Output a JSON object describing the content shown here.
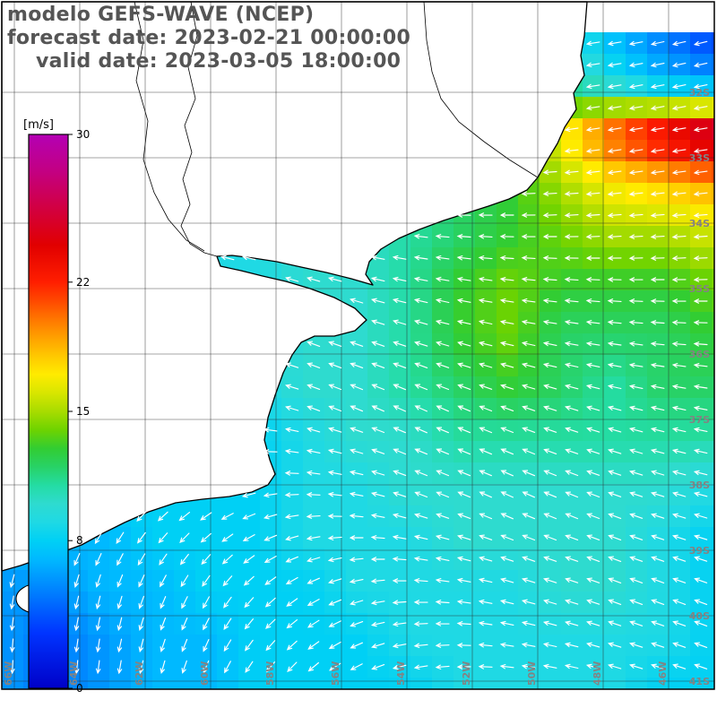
{
  "header": {
    "title": "modelo GEFS-WAVE (NCEP)",
    "forecast_line": "forecast date: 2023-02-21 00:00:00",
    "valid_line": "valid date: 2023-03-05 18:00:00"
  },
  "colorbar": {
    "label": "[m/s]",
    "tick_values": [
      30,
      22,
      15,
      8,
      0
    ],
    "min": 0,
    "max": 30
  },
  "colors": {
    "title_color": "#555555",
    "land": "#ffffff",
    "coastline": "#000000",
    "grid_line": "#2a2a2a",
    "geo_label": "#838383",
    "arrow": "#ffffff",
    "frame": "#000000",
    "tick_text": "#000000"
  },
  "chart_data": {
    "type": "heatmap",
    "overlay": "wind-direction-quiver",
    "units": "m/s",
    "title": "GEFS-WAVE (NCEP) wind speed field, valid 2023-03-05 18:00:00",
    "legend_position": "left",
    "value_range": [
      0,
      30
    ],
    "lat_tick_labels": [
      "32S",
      "33S",
      "34S",
      "35S",
      "36S",
      "37S",
      "38S",
      "39S",
      "40S",
      "41S"
    ],
    "lon_tick_labels": [
      "66W",
      "64W",
      "62W",
      "60W",
      "58W",
      "56W",
      "54W",
      "52W",
      "50W",
      "48W",
      "46W"
    ],
    "speed_grid": [
      [
        10,
        10,
        10,
        10,
        10,
        10,
        10,
        10,
        10,
        10,
        10,
        10,
        7,
        5,
        3
      ],
      [
        10,
        10,
        10,
        10,
        10,
        10,
        10,
        10,
        10,
        11,
        11,
        11,
        9,
        7,
        6
      ],
      [
        10,
        10,
        10,
        10,
        10,
        10,
        10,
        10,
        11,
        12,
        13,
        17,
        21,
        24,
        27
      ],
      [
        10,
        10,
        10,
        10,
        10,
        10,
        10,
        10,
        11,
        12,
        13,
        15,
        17,
        18,
        19
      ],
      [
        10,
        10,
        10,
        10,
        9,
        9,
        10,
        10,
        11,
        12,
        13,
        14,
        15,
        15,
        16
      ],
      [
        9,
        9,
        9,
        9,
        9,
        9,
        10,
        10,
        11,
        13,
        14,
        13,
        13,
        13,
        14
      ],
      [
        9,
        9,
        9,
        9,
        9,
        9,
        10,
        10,
        11,
        13,
        14,
        12,
        12,
        12,
        13
      ],
      [
        9,
        9,
        9,
        9,
        9,
        9,
        10,
        10,
        11,
        12,
        13,
        12,
        11,
        12,
        12
      ],
      [
        8,
        8,
        8,
        8,
        8,
        8,
        9,
        10,
        10,
        11,
        11,
        11,
        11,
        11,
        11
      ],
      [
        8,
        8,
        8,
        8,
        8,
        8,
        9,
        9,
        10,
        10,
        10,
        10,
        10,
        10,
        9
      ],
      [
        7,
        7,
        7,
        8,
        8,
        8,
        9,
        9,
        9,
        10,
        10,
        10,
        10,
        9,
        8
      ],
      [
        6,
        6,
        7,
        7,
        8,
        8,
        8,
        9,
        9,
        9,
        9,
        10,
        10,
        9,
        8
      ],
      [
        6,
        5,
        6,
        7,
        7,
        8,
        8,
        8,
        9,
        9,
        9,
        9,
        9,
        9,
        8
      ],
      [
        6,
        5,
        6,
        7,
        7,
        8,
        8,
        8,
        8,
        9,
        9,
        9,
        9,
        8,
        8
      ]
    ],
    "direction_grid_deg": [
      [
        180,
        180,
        180,
        180,
        180,
        185,
        190,
        195
      ],
      [
        180,
        180,
        180,
        180,
        180,
        185,
        190,
        190
      ],
      [
        170,
        170,
        170,
        170,
        175,
        180,
        185,
        185
      ],
      [
        170,
        165,
        160,
        160,
        165,
        170,
        175,
        180
      ],
      [
        200,
        200,
        180,
        160,
        155,
        160,
        165,
        170
      ],
      [
        230,
        230,
        210,
        180,
        160,
        155,
        160,
        165
      ],
      [
        260,
        255,
        240,
        210,
        180,
        165,
        160,
        160
      ],
      [
        270,
        265,
        250,
        225,
        195,
        175,
        165,
        160
      ]
    ],
    "colormap": [
      [
        0,
        "#0000c8"
      ],
      [
        3,
        "#0034ff"
      ],
      [
        5,
        "#0078ff"
      ],
      [
        7,
        "#00b9ff"
      ],
      [
        8,
        "#00d0f5"
      ],
      [
        9,
        "#1fd9e4"
      ],
      [
        10,
        "#2edbcf"
      ],
      [
        11,
        "#24dca3"
      ],
      [
        12,
        "#28d266"
      ],
      [
        13,
        "#32cd32"
      ],
      [
        14,
        "#6ed300"
      ],
      [
        15,
        "#a8dc00"
      ],
      [
        16,
        "#d8e600"
      ],
      [
        17,
        "#ffeb00"
      ],
      [
        18,
        "#ffc800"
      ],
      [
        19,
        "#ffa000"
      ],
      [
        20,
        "#ff7600"
      ],
      [
        21,
        "#ff4800"
      ],
      [
        22,
        "#ff1e00"
      ],
      [
        24,
        "#e10000"
      ],
      [
        26,
        "#d20041"
      ],
      [
        28,
        "#c30082"
      ],
      [
        30,
        "#b400b4"
      ]
    ]
  }
}
